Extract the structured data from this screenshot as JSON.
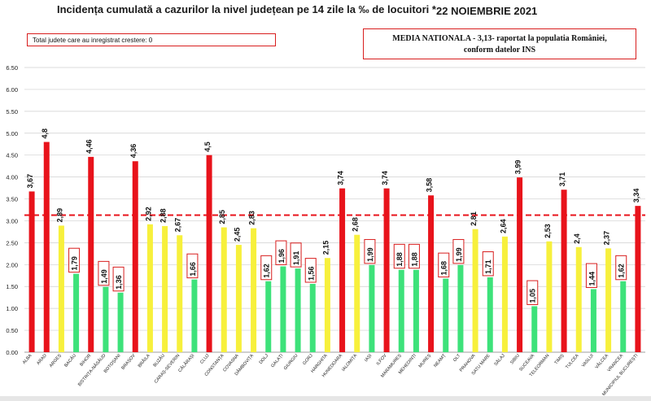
{
  "header": {
    "title": "Incidența cumulată a cazurilor la nivel județean pe 14 zile la ‰ de locuitori *",
    "date": "22 NOIEMBRIE 2021"
  },
  "info_box": {
    "text": "Total judete care au inregistrat crestere: 0"
  },
  "national_box": {
    "line1": "MEDIA NATIONALA - 3,13-  raportat la populatia României,",
    "line2": "conform datelor INS"
  },
  "colors": {
    "red": "#e8131b",
    "yellow": "#f7f03c",
    "green": "#3de27a",
    "grid": "#cfcfcf",
    "reference_line": "#e8131b",
    "label_box": "#d81e1e"
  },
  "chart_data": {
    "type": "bar",
    "title": "Incidența cumulată a cazurilor la nivel județean pe 14 zile la ‰ de locuitori *",
    "ylim": [
      0,
      6.5
    ],
    "yticks": [
      "0.00",
      "0.50",
      "1.00",
      "1.50",
      "2.00",
      "2.50",
      "3.00",
      "3.50",
      "4.00",
      "4.50",
      "5.00",
      "5.50",
      "6.00",
      "6.50"
    ],
    "reference_line": 3.13,
    "grid": true,
    "categories": [
      "ALBA",
      "ARAD",
      "ARGEȘ",
      "BACĂU",
      "BIHOR",
      "BISTRIȚA-NĂSĂUD",
      "BOTOȘANI",
      "BRAȘOV",
      "BRĂILA",
      "BUZĂU",
      "CARAȘ-SEVERIN",
      "CĂLĂRAȘI",
      "CLUJ",
      "CONSTANȚA",
      "COVASNA",
      "DÂMBOVIȚA",
      "DOLJ",
      "GALAȚI",
      "GIURGIU",
      "GORJ",
      "HARGHITA",
      "HUNEDOARA",
      "IALOMIȚA",
      "IAȘI",
      "ILFOV",
      "MARAMUREȘ",
      "MEHEDINȚI",
      "MUREȘ",
      "NEAMȚ",
      "OLT",
      "PRAHOVA",
      "SATU MARE",
      "SĂLAJ",
      "SIBIU",
      "SUCEAVA",
      "TELEORMAN",
      "TIMIȘ",
      "TULCEA",
      "VASLUI",
      "VÂLCEA",
      "VRANCEA",
      "MUNICIPIUL BUCUREȘTI"
    ],
    "values": [
      3.67,
      4.8,
      2.89,
      1.79,
      4.46,
      1.49,
      1.36,
      4.36,
      2.92,
      2.88,
      2.67,
      1.66,
      4.5,
      2.85,
      2.45,
      2.83,
      1.62,
      1.96,
      1.91,
      1.56,
      2.15,
      3.74,
      2.68,
      1.99,
      3.74,
      1.88,
      1.88,
      3.58,
      1.68,
      1.99,
      2.81,
      1.71,
      2.64,
      3.99,
      1.05,
      2.53,
      3.71,
      2.4,
      1.44,
      2.37,
      1.62,
      3.34
    ],
    "value_labels": [
      "3,67",
      "4,8",
      "2,89",
      "1,79",
      "4,46",
      "1,49",
      "1,36",
      "4,36",
      "2,92",
      "2,88",
      "2,67",
      "1,66",
      "4,5",
      "2,85",
      "2,45",
      "2,83",
      "1,62",
      "1,96",
      "1,91",
      "1,56",
      "2,15",
      "3,74",
      "2,68",
      "1,99",
      "3,74",
      "1,88",
      "1,88",
      "3,58",
      "1,68",
      "1,99",
      "2,81",
      "1,71",
      "2,64",
      "3,99",
      "1,05",
      "2,53",
      "3,71",
      "2,4",
      "1,44",
      "2,37",
      "1,62",
      "3,34"
    ],
    "colors": [
      "red",
      "red",
      "yellow",
      "green",
      "red",
      "green",
      "green",
      "red",
      "yellow",
      "yellow",
      "yellow",
      "green",
      "red",
      "yellow",
      "yellow",
      "yellow",
      "green",
      "green",
      "green",
      "green",
      "yellow",
      "red",
      "yellow",
      "green",
      "red",
      "green",
      "green",
      "red",
      "green",
      "green",
      "yellow",
      "green",
      "yellow",
      "red",
      "green",
      "yellow",
      "red",
      "yellow",
      "green",
      "yellow",
      "green",
      "red"
    ],
    "boxed_labels": [
      false,
      false,
      false,
      true,
      false,
      true,
      true,
      false,
      false,
      false,
      false,
      true,
      false,
      false,
      false,
      false,
      true,
      true,
      true,
      true,
      false,
      false,
      false,
      true,
      false,
      true,
      true,
      false,
      true,
      true,
      false,
      true,
      false,
      false,
      true,
      false,
      false,
      false,
      true,
      false,
      true,
      false
    ]
  }
}
